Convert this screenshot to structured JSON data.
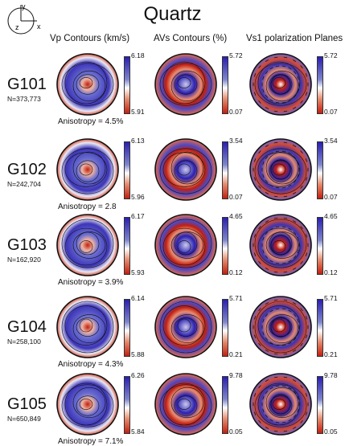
{
  "title": "Quartz",
  "reference": {
    "y": "y",
    "z": "z",
    "x": "x"
  },
  "columns": {
    "vp": "Vp  Contours (km/s)",
    "avs": "AVs Contours (%)",
    "vs1": "Vs1 polarization Planes"
  },
  "samples": [
    {
      "name": "G101",
      "count": "N=373,773",
      "anisotropy": "Anisotropy = 4.5%",
      "vp": {
        "max": "6.18",
        "min": "5.91"
      },
      "avs": {
        "max": "5.72",
        "min": "0.07"
      },
      "vs1": {
        "max": "5.72",
        "min": "0.07"
      }
    },
    {
      "name": "G102",
      "count": "N=242,704",
      "anisotropy": "Anisotropy = 2.8",
      "vp": {
        "max": "6.13",
        "min": "5.96"
      },
      "avs": {
        "max": "3.54",
        "min": "0.07"
      },
      "vs1": {
        "max": "3.54",
        "min": "0.07"
      }
    },
    {
      "name": "G103",
      "count": "N=162,920",
      "anisotropy": "Anisotropy = 3.9%",
      "vp": {
        "max": "6.17",
        "min": "5.93"
      },
      "avs": {
        "max": "4.65",
        "min": "0.12"
      },
      "vs1": {
        "max": "4.65",
        "min": "0.12"
      }
    },
    {
      "name": "G104",
      "count": "N=258,100",
      "anisotropy": "Anisotropy = 4.3%",
      "vp": {
        "max": "6.14",
        "min": "5.88"
      },
      "avs": {
        "max": "5.71",
        "min": "0.21"
      },
      "vs1": {
        "max": "5.71",
        "min": "0.21"
      }
    },
    {
      "name": "G105",
      "count": "N=650,849",
      "anisotropy": "Anisotropy = 7.1%",
      "vp": {
        "max": "6.26",
        "min": "5.84"
      },
      "avs": {
        "max": "9.78",
        "min": "0.05"
      },
      "vs1": {
        "max": "9.78",
        "min": "0.05"
      }
    }
  ],
  "colors": {
    "high": "#2a1fb0",
    "low": "#c21f0f",
    "mid": "#ffffff"
  }
}
